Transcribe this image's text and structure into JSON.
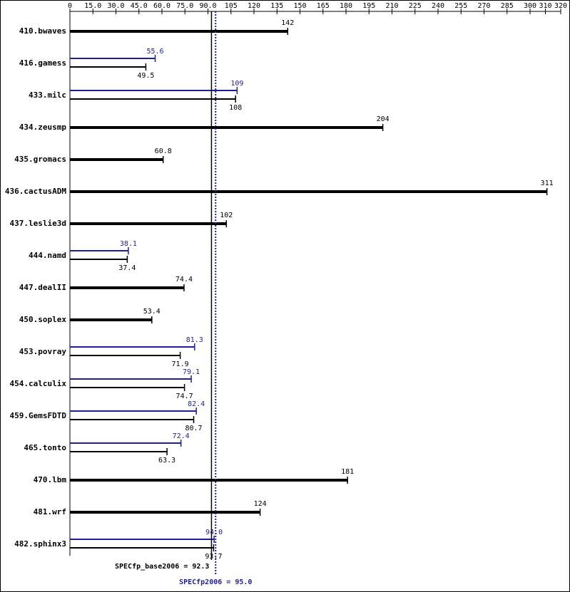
{
  "chart_data": {
    "type": "bar",
    "orientation": "horizontal",
    "categories": [
      "410.bwaves",
      "416.gamess",
      "433.milc",
      "434.zeusmp",
      "435.gromacs",
      "436.cactusADM",
      "437.leslie3d",
      "444.namd",
      "447.dealII",
      "450.soplex",
      "453.povray",
      "454.calculix",
      "459.GemsFDTD",
      "465.tonto",
      "470.lbm",
      "481.wrf",
      "482.sphinx3"
    ],
    "series": [
      {
        "color": "#000000",
        "values": [
          142,
          49.5,
          108,
          204,
          60.8,
          311,
          102,
          37.4,
          74.4,
          53.4,
          71.9,
          74.7,
          80.7,
          63.3,
          181,
          124,
          93.7
        ]
      },
      {
        "color": "#1f1f99",
        "values": [
          null,
          55.6,
          109,
          null,
          null,
          null,
          null,
          38.1,
          null,
          null,
          81.3,
          79.1,
          82.4,
          72.4,
          null,
          null,
          94.0
        ],
        "value_labels": [
          null,
          "55.6",
          "109",
          null,
          null,
          null,
          null,
          "38.1",
          null,
          null,
          "81.3",
          "79.1",
          "82.4",
          "72.4",
          null,
          null,
          "94.0"
        ]
      }
    ],
    "xlim": [
      0,
      320
    ],
    "xticks": [
      0,
      {
        "value": 15,
        "label": "15.0"
      },
      {
        "value": 30,
        "label": "30.0"
      },
      {
        "value": 45,
        "label": "45.0"
      },
      {
        "value": 60,
        "label": "60.0"
      },
      {
        "value": 75,
        "label": "75.0"
      },
      {
        "value": 90,
        "label": "90.0"
      },
      105,
      120,
      135,
      150,
      165,
      180,
      195,
      210,
      225,
      240,
      255,
      270,
      285,
      300,
      310,
      320
    ],
    "reference_lines": [
      {
        "label": "SPECfp_base2006 = 92.3",
        "value": 92.3,
        "color": "#000000"
      },
      {
        "label": "SPECfp2006 = 95.0",
        "value": 95.0,
        "color": "#1f1f99"
      }
    ]
  }
}
